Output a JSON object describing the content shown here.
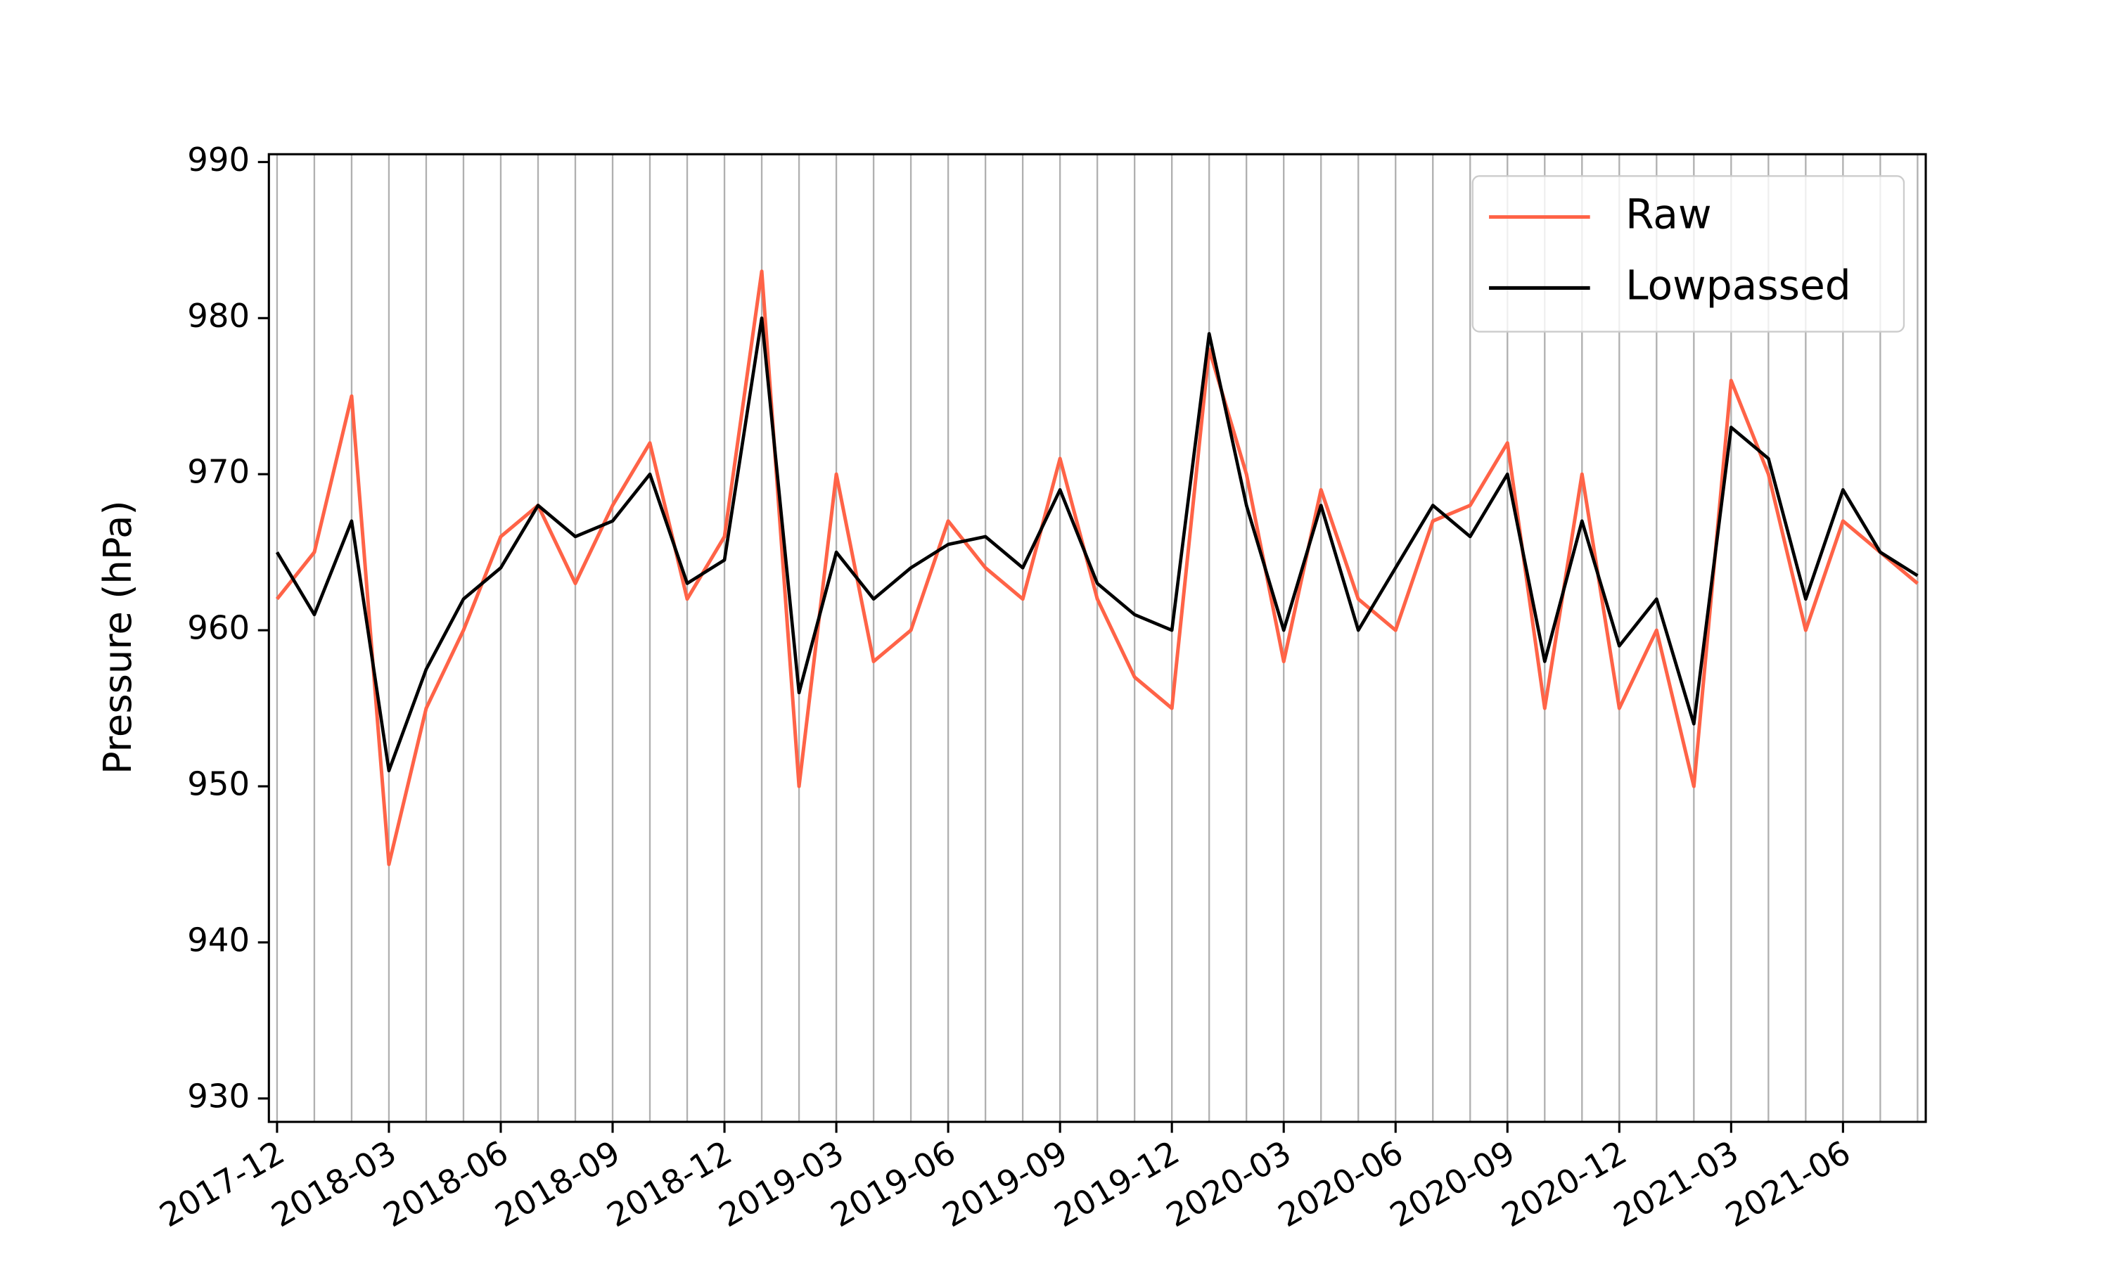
{
  "chart_data": {
    "type": "line",
    "y_label": "Pressure (hPa)",
    "x": [
      "2017-12",
      "2018-01",
      "2018-02",
      "2018-03",
      "2018-04",
      "2018-05",
      "2018-06",
      "2018-07",
      "2018-08",
      "2018-09",
      "2018-10",
      "2018-11",
      "2018-12",
      "2019-01",
      "2019-02",
      "2019-03",
      "2019-04",
      "2019-05",
      "2019-06",
      "2019-07",
      "2019-08",
      "2019-09",
      "2019-10",
      "2019-11",
      "2019-12",
      "2020-01",
      "2020-02",
      "2020-03",
      "2020-04",
      "2020-05",
      "2020-06",
      "2020-07",
      "2020-08",
      "2020-09",
      "2020-10",
      "2020-11",
      "2020-12",
      "2021-01",
      "2021-02",
      "2021-03",
      "2021-04",
      "2021-05",
      "2021-06",
      "2021-07",
      "2021-08"
    ],
    "series": [
      {
        "name": "Raw",
        "color": "#ff6347",
        "values": [
          962,
          965,
          975,
          945,
          955,
          960,
          966,
          968,
          963,
          968,
          972,
          962,
          966,
          983,
          950,
          970,
          958,
          960,
          967,
          964,
          962,
          971,
          962,
          957,
          955,
          978,
          970,
          958,
          969,
          962,
          960,
          967,
          968,
          972,
          955,
          970,
          955,
          960,
          950,
          976,
          970,
          960,
          967,
          965,
          963
        ]
      },
      {
        "name": "Lowpassed",
        "color": "#000000",
        "values": [
          965,
          961,
          967,
          951,
          957.5,
          962,
          964,
          968,
          966,
          967,
          970,
          963,
          964.5,
          980,
          956,
          965,
          962,
          964,
          965.5,
          966,
          964,
          969,
          963,
          961,
          960,
          979,
          968,
          960,
          968,
          960,
          964,
          968,
          966,
          970,
          958,
          967,
          959,
          962,
          954,
          973,
          971,
          962,
          969,
          965,
          963.5
        ]
      }
    ],
    "xlim": [
      "2017-12",
      "2021-08"
    ],
    "xticks": [
      "2017-12",
      "2018-03",
      "2018-06",
      "2018-09",
      "2018-12",
      "2019-03",
      "2019-06",
      "2019-09",
      "2019-12",
      "2020-03",
      "2020-06",
      "2020-09",
      "2020-12",
      "2021-03",
      "2021-06"
    ],
    "ylim": [
      928.5,
      990.5
    ],
    "yticks": [
      930,
      940,
      950,
      960,
      970,
      980,
      990
    ],
    "grid": "x",
    "legend": "upper right"
  }
}
